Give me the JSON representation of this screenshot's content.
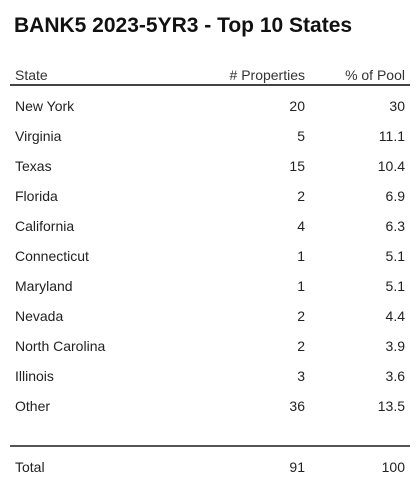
{
  "chart_data": {
    "type": "table",
    "title": "BANK5 2023-5YR3 - Top 10 States",
    "columns": [
      "State",
      "# Properties",
      "% of Pool"
    ],
    "rows": [
      {
        "state": "New York",
        "properties": "20",
        "pool": "30"
      },
      {
        "state": "Virginia",
        "properties": "5",
        "pool": "11.1"
      },
      {
        "state": "Texas",
        "properties": "15",
        "pool": "10.4"
      },
      {
        "state": "Florida",
        "properties": "2",
        "pool": "6.9"
      },
      {
        "state": "California",
        "properties": "4",
        "pool": "6.3"
      },
      {
        "state": "Connecticut",
        "properties": "1",
        "pool": "5.1"
      },
      {
        "state": "Maryland",
        "properties": "1",
        "pool": "5.1"
      },
      {
        "state": "Nevada",
        "properties": "2",
        "pool": "4.4"
      },
      {
        "state": "North Carolina",
        "properties": "2",
        "pool": "3.9"
      },
      {
        "state": "Illinois",
        "properties": "3",
        "pool": "3.6"
      },
      {
        "state": "Other",
        "properties": "36",
        "pool": "13.5"
      }
    ],
    "total": {
      "label": "Total",
      "properties": "91",
      "pool": "100"
    }
  }
}
